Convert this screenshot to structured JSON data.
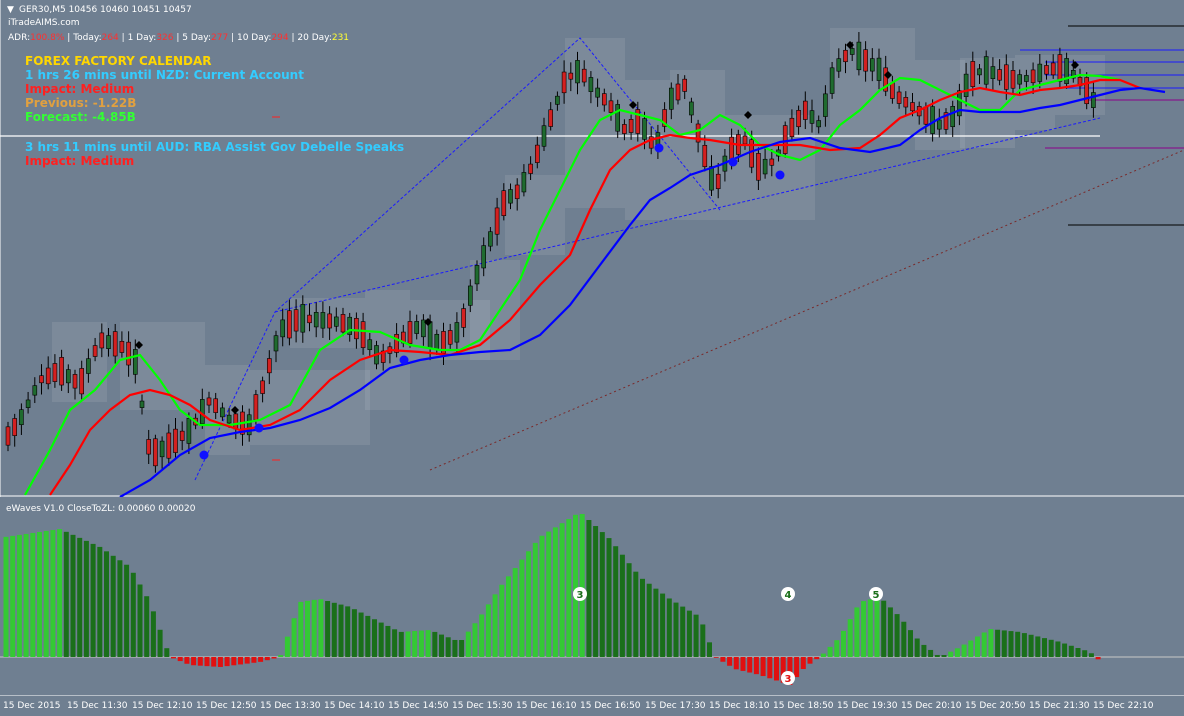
{
  "header": {
    "symbol_line": "GER30,M5  10456 10460 10451 10457",
    "site": "iTradeAIMS.com",
    "menu_glyph": "▼"
  },
  "adr": {
    "adr_label": "ADR:",
    "adr_value": "100.8%",
    "sep": " | ",
    "today_label": "Today:",
    "today_value": "264",
    "d1_label": "1 Day:",
    "d1_value": "326",
    "d5_label": "5 Day:",
    "d5_value": "277",
    "d10_label": "10 Day:",
    "d10_value": "294",
    "d20_label": "20 Day:",
    "d20_value": "231"
  },
  "calendar": {
    "title": "FOREX FACTORY CALENDAR",
    "event1": "1 hrs 26 mins until NZD: Current Account",
    "impact1": "Impact: Medium",
    "previous1": "Previous: -1.22B",
    "forecast1": "Forecast: -4.85B",
    "event2": "3 hrs 11 mins until AUD: RBA Assist Gov Debelle Speaks",
    "impact2": "Impact: Medium"
  },
  "indicator": {
    "label": "eWaves V1.0 CloseToZL: 0.00060 0.00020",
    "wave_labels": [
      "3",
      "4",
      "5",
      "3"
    ]
  },
  "time_axis": [
    "15 Dec 2015",
    "15 Dec 11:30",
    "15 Dec 12:10",
    "15 Dec 12:50",
    "15 Dec 13:30",
    "15 Dec 14:10",
    "15 Dec 14:50",
    "15 Dec 15:30",
    "15 Dec 16:10",
    "15 Dec 16:50",
    "15 Dec 17:30",
    "15 Dec 18:10",
    "15 Dec 18:50",
    "15 Dec 19:30",
    "15 Dec 20:10",
    "15 Dec 20:50",
    "15 Dec 21:30",
    "15 Dec 22:10"
  ],
  "colors": {
    "background": "#6f7f91",
    "bull": "#1f6b2f",
    "bear": "#d42020",
    "ma_fast": "#00ff00",
    "ma_mid": "#ff0000",
    "ma_slow": "#0000ff",
    "osc_light": "#34c934",
    "osc_dark": "#1a6f1a",
    "osc_neg": "#e01010",
    "title_yellow": "#ffd700",
    "event_blue": "#33ccff",
    "impact_red": "#ff2020",
    "previous_orange": "#e0a040",
    "forecast_green": "#33ff33"
  }
}
